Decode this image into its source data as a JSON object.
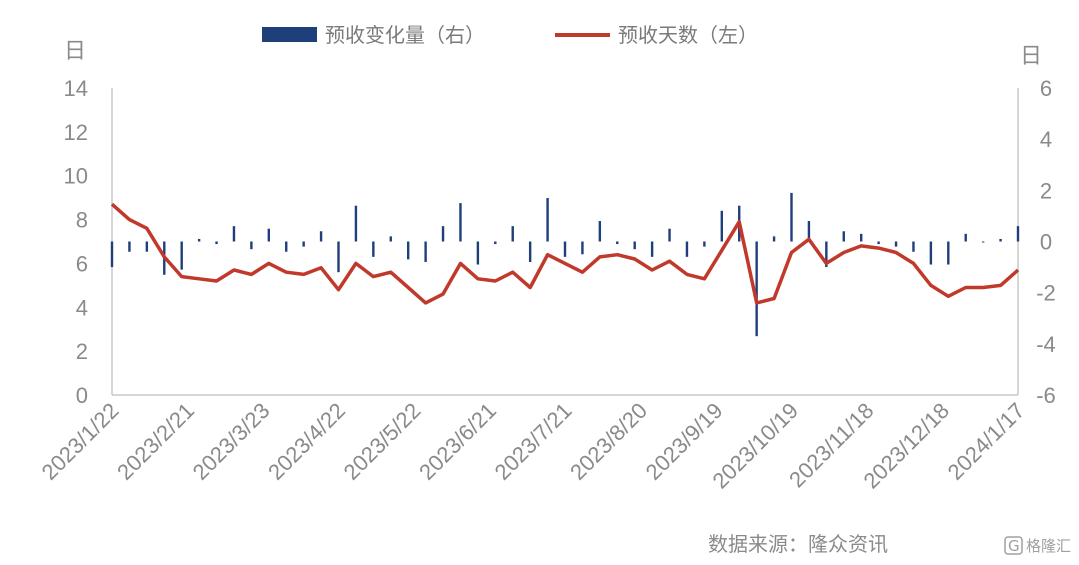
{
  "chart_data": {
    "type": "bar+line",
    "legend": {
      "bar_label": "预收变化量（右）",
      "line_label": "预收天数（左）",
      "placement": "top"
    },
    "left_axis": {
      "unit": "日",
      "ylim": [
        0,
        14
      ],
      "ticks": [
        "0",
        "2",
        "4",
        "6",
        "8",
        "10",
        "12",
        "14"
      ]
    },
    "right_axis": {
      "unit": "日",
      "ylim": [
        -6,
        6
      ],
      "ticks": [
        "-6",
        "-4",
        "-2",
        "0",
        "2",
        "4",
        "6"
      ]
    },
    "x_tick_labels": [
      "2023/1/22",
      "2023/2/21",
      "2023/3/23",
      "2023/4/22",
      "2023/5/22",
      "2023/6/21",
      "2023/7/21",
      "2023/8/20",
      "2023/9/19",
      "2023/10/19",
      "2023/11/18",
      "2023/12/18",
      "2024/1/17"
    ],
    "series": [
      {
        "name": "预收天数（左）",
        "axis": "left",
        "color": "#c0392b",
        "values": [
          8.7,
          8.0,
          7.6,
          6.3,
          5.4,
          5.3,
          5.2,
          5.7,
          5.5,
          6.0,
          5.6,
          5.5,
          5.8,
          4.8,
          6.0,
          5.4,
          5.6,
          4.9,
          4.2,
          4.6,
          6.0,
          5.3,
          5.2,
          5.6,
          4.9,
          6.4,
          6.0,
          5.6,
          6.3,
          6.4,
          6.2,
          5.7,
          6.1,
          5.5,
          5.3,
          6.6,
          7.9,
          4.2,
          4.4,
          6.5,
          7.1,
          6.0,
          6.5,
          6.8,
          6.7,
          6.5,
          6.0,
          5.0,
          4.5,
          4.9,
          4.9,
          5.0,
          5.7
        ]
      },
      {
        "name": "预收变化量（右）",
        "axis": "right",
        "color": "#1f3f7a",
        "values": [
          -1.0,
          -0.4,
          -0.4,
          -1.3,
          -1.1,
          0.1,
          -0.1,
          0.6,
          -0.3,
          0.5,
          -0.4,
          -0.2,
          0.4,
          -1.2,
          1.4,
          -0.6,
          0.2,
          -0.7,
          -0.8,
          0.6,
          1.5,
          -0.9,
          -0.1,
          0.6,
          -0.8,
          1.7,
          -0.6,
          -0.5,
          0.8,
          -0.1,
          -0.3,
          -0.6,
          0.5,
          -0.6,
          -0.2,
          1.2,
          1.4,
          -3.7,
          0.2,
          1.9,
          0.8,
          -1.0,
          0.4,
          0.3,
          -0.1,
          -0.2,
          -0.4,
          -0.9,
          -0.9,
          0.3,
          0.0,
          0.1,
          0.6
        ]
      }
    ],
    "source_note": "数据来源：隆众资讯",
    "watermark": "格隆汇"
  }
}
